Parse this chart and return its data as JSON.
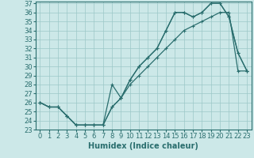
{
  "xlabel": "Humidex (Indice chaleur)",
  "bg_color": "#cce8e8",
  "grid_color": "#9cc8c8",
  "line_color": "#2a6e6e",
  "x_min": 0,
  "x_max": 23,
  "y_min": 23,
  "y_max": 37,
  "curve1_x": [
    0,
    1,
    2,
    3,
    4,
    5,
    6,
    7,
    8,
    9,
    10,
    11,
    12,
    13,
    14,
    15,
    16,
    17,
    18,
    19,
    20,
    21,
    22,
    23
  ],
  "curve1_y": [
    26,
    25.5,
    25.5,
    24.5,
    23.5,
    23.5,
    23.5,
    23.5,
    25.5,
    26.5,
    28.5,
    30,
    31,
    32,
    34,
    36,
    36,
    35.5,
    36,
    37,
    37,
    35.5,
    31.5,
    29.5
  ],
  "curve2_x": [
    0,
    1,
    2,
    3,
    4,
    5,
    6,
    7,
    8,
    9,
    10,
    11,
    12,
    13,
    14,
    15,
    16,
    17,
    18,
    19,
    20,
    21,
    22,
    23
  ],
  "curve2_y": [
    26,
    25.5,
    25.5,
    24.5,
    23.5,
    23.5,
    23.5,
    23.5,
    28,
    26.5,
    28.5,
    30,
    31,
    32,
    34,
    36,
    36,
    35.5,
    36,
    37,
    37,
    35.5,
    31.5,
    29.5
  ],
  "curve3_x": [
    0,
    1,
    2,
    3,
    4,
    5,
    6,
    7,
    8,
    9,
    10,
    11,
    12,
    13,
    14,
    15,
    16,
    17,
    18,
    19,
    20,
    21,
    22,
    23
  ],
  "curve3_y": [
    26,
    25.5,
    25.5,
    24.5,
    23.5,
    23.5,
    23.5,
    23.5,
    25.5,
    26.5,
    28,
    29,
    30,
    31,
    32,
    33,
    34,
    34.5,
    35,
    35.5,
    36,
    36,
    29.5,
    29.5
  ],
  "tick_fontsize": 6,
  "label_fontsize": 7
}
